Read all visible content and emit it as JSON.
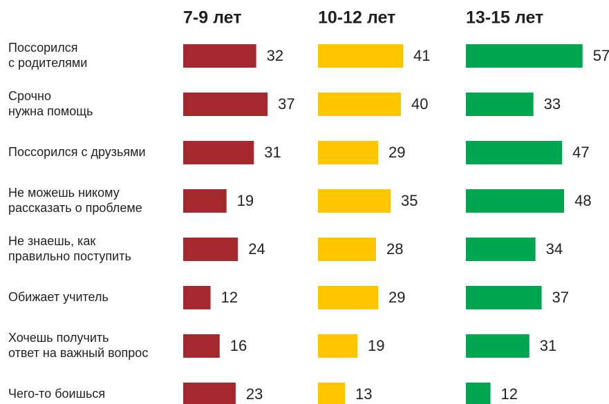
{
  "chart_data": {
    "type": "bar",
    "orientation": "horizontal",
    "categories": [
      [
        "Поссорился",
        "с родителями"
      ],
      [
        "Срочно",
        "нужна помощь"
      ],
      [
        "Поссорился с друзьями"
      ],
      [
        "Не можешь никому",
        "рассказать о проблеме"
      ],
      [
        "Не знаешь, как",
        "правильно поступить"
      ],
      [
        "Обижает учитель"
      ],
      [
        "Хочешь получить",
        "ответ на важный вопрос"
      ],
      [
        "Чего-то боишься"
      ]
    ],
    "series": [
      {
        "name": "7-9 лет",
        "color": "#a4292f",
        "values": [
          32,
          37,
          31,
          19,
          24,
          12,
          16,
          23
        ]
      },
      {
        "name": "10-12 лет",
        "color": "#ffc600",
        "values": [
          41,
          40,
          29,
          35,
          28,
          29,
          19,
          13
        ]
      },
      {
        "name": "13-15 лет",
        "color": "#00a550",
        "values": [
          57,
          33,
          47,
          48,
          34,
          37,
          31,
          12
        ]
      }
    ]
  }
}
